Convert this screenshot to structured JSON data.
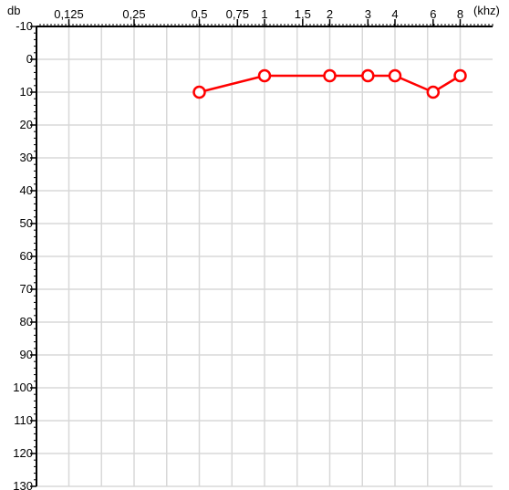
{
  "chart_data": {
    "type": "line",
    "xlabel": "(khz)",
    "ylabel": "db",
    "x_tick_labels": [
      "0,125",
      "0,25",
      "0,5",
      "0,75",
      "1",
      "1,5",
      "2",
      "3",
      "4",
      "6",
      "8"
    ],
    "x_ticks_khz": [
      0.125,
      0.25,
      0.5,
      0.75,
      1,
      1.5,
      2,
      3,
      4,
      6,
      8
    ],
    "y_ticks": [
      -10,
      0,
      10,
      20,
      30,
      40,
      50,
      60,
      70,
      80,
      90,
      100,
      110,
      120,
      130
    ],
    "ylim": [
      -10,
      130
    ],
    "y_inverted": true,
    "x_scale": "log",
    "grid": true,
    "series": [
      {
        "marker": "open-circle",
        "color": "#ff0000",
        "x": [
          0.5,
          1,
          2,
          3,
          4,
          6,
          8
        ],
        "y": [
          10,
          5,
          5,
          5,
          5,
          10,
          5
        ]
      }
    ]
  }
}
